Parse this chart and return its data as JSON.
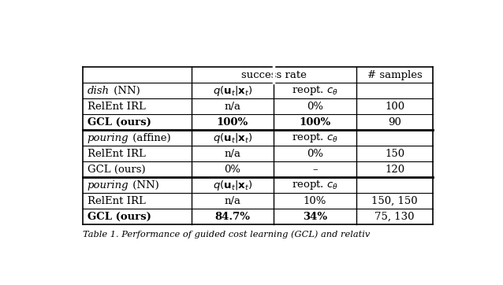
{
  "background_color": "#ffffff",
  "sections": [
    {
      "italic_part": "dish",
      "normal_part": " (NN)",
      "rows": [
        {
          "col1": "RelEnt IRL",
          "col1_bold": false,
          "col2": "n/a",
          "col3": "0%",
          "col4": "100"
        },
        {
          "col1": "GCL (ours)",
          "col1_bold": true,
          "col2": "100%",
          "col3": "100%",
          "col4": "90"
        }
      ]
    },
    {
      "italic_part": "pouring",
      "normal_part": " (affine)",
      "rows": [
        {
          "col1": "RelEnt IRL",
          "col1_bold": false,
          "col2": "n/a",
          "col3": "0%",
          "col4": "150"
        },
        {
          "col1": "GCL (ours)",
          "col1_bold": false,
          "col2": "0%",
          "col3": "–",
          "col4": "120"
        }
      ]
    },
    {
      "italic_part": "pouring",
      "normal_part": " (NN)",
      "rows": [
        {
          "col1": "RelEnt IRL",
          "col1_bold": false,
          "col2": "n/a",
          "col3": "10%",
          "col4": "150, 150"
        },
        {
          "col1": "GCL (ours)",
          "col1_bold": true,
          "col2": "84.7%",
          "col3": "34%",
          "col4": "75, 130"
        }
      ]
    }
  ],
  "font_size": 9.5,
  "caption": "Table 1. Performance of guided cost learning (GCL) and relativ"
}
